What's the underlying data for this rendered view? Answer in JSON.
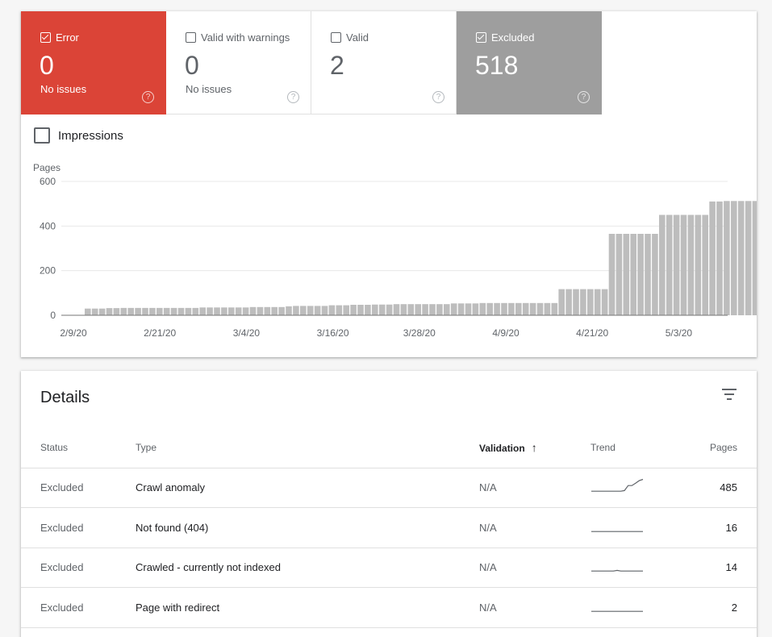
{
  "tiles": [
    {
      "label": "Error",
      "value": "0",
      "sub": "No issues",
      "checked": true,
      "style": "error"
    },
    {
      "label": "Valid with warnings",
      "value": "0",
      "sub": "No issues",
      "checked": false,
      "style": "plain"
    },
    {
      "label": "Valid",
      "value": "2",
      "sub": "",
      "checked": false,
      "style": "plain"
    },
    {
      "label": "Excluded",
      "value": "518",
      "sub": "",
      "checked": true,
      "style": "excluded"
    }
  ],
  "help_glyph": "?",
  "impressions_label": "Impressions",
  "chart_data": {
    "type": "bar",
    "ylabel": "Pages",
    "ylim": [
      0,
      600
    ],
    "yticks": [
      0,
      200,
      400,
      600
    ],
    "xtick_labels": [
      "2/9/20",
      "2/21/20",
      "3/4/20",
      "3/16/20",
      "3/28/20",
      "4/9/20",
      "4/21/20",
      "5/3/20"
    ],
    "bar_color": "#bdbdbd",
    "values": [
      30,
      30,
      30,
      32,
      32,
      33,
      33,
      33,
      33,
      33,
      33,
      33,
      33,
      33,
      33,
      33,
      35,
      35,
      35,
      35,
      35,
      35,
      35,
      37,
      37,
      37,
      37,
      37,
      40,
      42,
      42,
      42,
      42,
      42,
      45,
      45,
      45,
      47,
      47,
      47,
      48,
      48,
      48,
      50,
      50,
      50,
      50,
      50,
      50,
      50,
      50,
      53,
      53,
      53,
      53,
      55,
      55,
      55,
      55,
      55,
      55,
      55,
      55,
      55,
      55,
      55,
      117,
      117,
      117,
      117,
      117,
      117,
      117,
      365,
      365,
      365,
      365,
      365,
      365,
      365,
      450,
      450,
      450,
      450,
      450,
      450,
      450,
      510,
      510,
      512,
      512,
      512,
      512,
      512,
      512
    ]
  },
  "details": {
    "title": "Details",
    "filter_icon": "filter-icon",
    "columns": [
      "Status",
      "Type",
      "Validation",
      "Trend",
      "Pages"
    ],
    "sort_glyph": "↑",
    "rows": [
      {
        "status": "Excluded",
        "type": "Crawl anomaly",
        "validation": "N/A",
        "pages": "485",
        "trend": [
          5,
          5,
          5,
          5,
          5,
          5,
          5,
          5,
          5,
          6,
          14,
          14,
          18,
          22,
          24
        ]
      },
      {
        "status": "Excluded",
        "type": "Not found (404)",
        "validation": "N/A",
        "pages": "16",
        "trend": [
          5,
          5,
          5,
          5,
          5,
          5,
          5,
          5,
          5,
          5,
          5,
          5,
          5,
          5,
          5
        ]
      },
      {
        "status": "Excluded",
        "type": "Crawled - currently not indexed",
        "validation": "N/A",
        "pages": "14",
        "trend": [
          5,
          5,
          5,
          5,
          5,
          5,
          5,
          6,
          5,
          5,
          5,
          5,
          5,
          5,
          5
        ]
      },
      {
        "status": "Excluded",
        "type": "Page with redirect",
        "validation": "N/A",
        "pages": "2",
        "trend": [
          5,
          5,
          5,
          5,
          5,
          5,
          5,
          5,
          5,
          5,
          5,
          5,
          5,
          5,
          5
        ]
      },
      {
        "status": "",
        "type": "",
        "validation": "",
        "pages": "",
        "trend": []
      }
    ]
  }
}
